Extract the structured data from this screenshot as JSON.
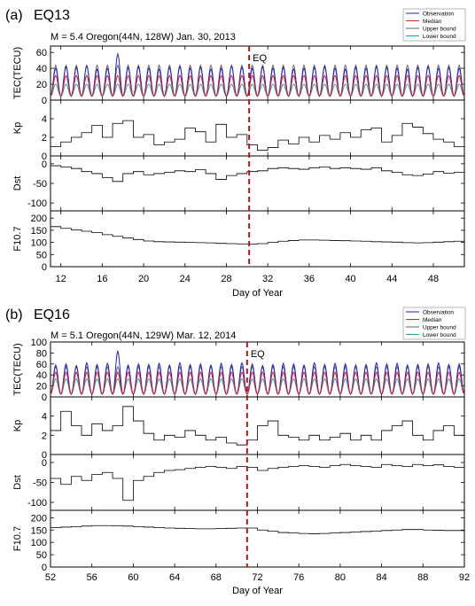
{
  "figure": {
    "colors": {
      "observation": "#1f1fd0",
      "median": "#e0202a",
      "upper": "#606060",
      "lower": "#1aa7a0",
      "eq_line": "#b01818",
      "trace": "#000000"
    }
  },
  "chart_data": [
    {
      "type": "line",
      "panel_tag": "(a)",
      "event_name": "EQ13",
      "subtitle": "M = 5.4 Oregon(44N, 128W) Jan. 30, 2013",
      "eq_label": "EQ",
      "eq_day": 30.2,
      "xlabel": "Day of Year",
      "xlim": [
        11,
        51
      ],
      "xticks": [
        12,
        16,
        20,
        24,
        28,
        32,
        36,
        40,
        44,
        48
      ],
      "legend": [
        "Observation",
        "Median",
        "Upper bound",
        "Lower bound"
      ],
      "tec": {
        "ylabel": "TEC(TECU)",
        "ylim": [
          0,
          68
        ],
        "yticks": [
          0,
          20,
          40,
          60
        ],
        "day_start": 11,
        "days": 40,
        "peak_obs": [
          40,
          42,
          41,
          43,
          39,
          40,
          58,
          41,
          42,
          40,
          39,
          41,
          42,
          40,
          41,
          39,
          40,
          43,
          41,
          40,
          42,
          40,
          41,
          39,
          40,
          41,
          42,
          40,
          39,
          41,
          40,
          42,
          41,
          40,
          39,
          41,
          42,
          40,
          41,
          40
        ],
        "peak_median": 31,
        "peak_upper": 44,
        "peak_lower": 20,
        "night": 5
      },
      "kp": {
        "ylabel": "Kp",
        "ylim": [
          0,
          6
        ],
        "yticks": [
          0,
          2,
          4
        ],
        "x": [
          11,
          12,
          13,
          14,
          15,
          16,
          17,
          18,
          19,
          20,
          21,
          22,
          23,
          24,
          25,
          26,
          27,
          28,
          29,
          30,
          31,
          32,
          33,
          34,
          35,
          36,
          37,
          38,
          39,
          40,
          41,
          42,
          43,
          44,
          45,
          46,
          47,
          48,
          49,
          50,
          51
        ],
        "y": [
          1.0,
          1.5,
          2.0,
          2.5,
          3.3,
          2.0,
          3.5,
          3.8,
          2.0,
          2.3,
          1.2,
          1.5,
          1.8,
          3.0,
          2.6,
          1.5,
          3.4,
          2.0,
          2.3,
          1.2,
          0.6,
          0.9,
          1.7,
          1.3,
          2.0,
          1.5,
          2.2,
          1.8,
          2.5,
          2.0,
          2.8,
          3.0,
          1.5,
          2.2,
          3.5,
          3.1,
          2.4,
          1.8,
          1.5,
          1.0,
          1.5
        ]
      },
      "dst": {
        "ylabel": "Dst",
        "ylim": [
          -120,
          20
        ],
        "yticks": [
          -100,
          -50,
          0
        ],
        "x": [
          11,
          12,
          13,
          14,
          15,
          16,
          17,
          18,
          19,
          20,
          21,
          22,
          23,
          24,
          25,
          26,
          27,
          28,
          29,
          30,
          31,
          32,
          33,
          34,
          35,
          36,
          37,
          38,
          39,
          40,
          41,
          42,
          43,
          44,
          45,
          46,
          47,
          48,
          49,
          50,
          51
        ],
        "y": [
          -5,
          -8,
          -12,
          -20,
          -25,
          -35,
          -45,
          -25,
          -20,
          -28,
          -25,
          -22,
          -18,
          -20,
          -15,
          -25,
          -40,
          -30,
          -25,
          -20,
          -18,
          -12,
          -10,
          -12,
          -14,
          -10,
          -8,
          -12,
          -10,
          -12,
          -14,
          -10,
          -18,
          -22,
          -28,
          -30,
          -26,
          -20,
          -24,
          -22,
          -18
        ]
      },
      "f107": {
        "ylabel": "F10.7",
        "ylim": [
          0,
          230
        ],
        "yticks": [
          0,
          50,
          100,
          150,
          200
        ],
        "x": [
          11,
          12,
          13,
          14,
          15,
          16,
          17,
          18,
          19,
          20,
          21,
          22,
          23,
          24,
          25,
          26,
          27,
          28,
          29,
          30,
          31,
          32,
          33,
          34,
          35,
          36,
          37,
          38,
          39,
          40,
          41,
          42,
          43,
          44,
          45,
          46,
          47,
          48,
          49,
          50,
          51
        ],
        "y": [
          165,
          158,
          152,
          146,
          140,
          132,
          125,
          118,
          112,
          106,
          103,
          102,
          101,
          100,
          99,
          98,
          96,
          95,
          94,
          93,
          95,
          100,
          105,
          108,
          110,
          110,
          109,
          108,
          107,
          106,
          105,
          103,
          102,
          101,
          99,
          98,
          99,
          101,
          103,
          105,
          108
        ]
      }
    },
    {
      "type": "line",
      "panel_tag": "(b)",
      "event_name": "EQ16",
      "subtitle": "M = 5.1 Oregon(44N, 129W) Mar. 12, 2014",
      "eq_label": "EQ",
      "eq_day": 71,
      "xlabel": "Day of Year",
      "xlim": [
        52,
        92
      ],
      "xticks": [
        52,
        56,
        60,
        64,
        68,
        72,
        76,
        80,
        84,
        88,
        92
      ],
      "legend": [
        "Observation",
        "Median",
        "Upper bound",
        "Lower bound"
      ],
      "tec": {
        "ylabel": "TEC(TECU)",
        "ylim": [
          0,
          100
        ],
        "yticks": [
          0,
          20,
          40,
          60,
          80,
          100
        ],
        "day_start": 52,
        "days": 40,
        "peak_obs": [
          58,
          60,
          57,
          62,
          59,
          61,
          83,
          58,
          60,
          59,
          61,
          58,
          62,
          59,
          60,
          58,
          61,
          59,
          62,
          60,
          57,
          59,
          61,
          60,
          58,
          62,
          59,
          61,
          60,
          58,
          59,
          62,
          60,
          61,
          58,
          59,
          60,
          62,
          59,
          60
        ],
        "peak_median": 45,
        "peak_upper": 55,
        "peak_lower": 33,
        "night": 5
      },
      "kp": {
        "ylabel": "Kp",
        "ylim": [
          0,
          6
        ],
        "yticks": [
          0,
          2,
          4
        ],
        "x": [
          52,
          53,
          54,
          55,
          56,
          57,
          58,
          59,
          60,
          61,
          62,
          63,
          64,
          65,
          66,
          67,
          68,
          69,
          70,
          71,
          72,
          73,
          74,
          75,
          76,
          77,
          78,
          79,
          80,
          81,
          82,
          83,
          84,
          85,
          86,
          87,
          88,
          89,
          90,
          91,
          92
        ],
        "y": [
          2.5,
          4.5,
          3.0,
          2.0,
          3.2,
          2.5,
          3.0,
          5.0,
          3.5,
          2.2,
          1.5,
          2.0,
          1.8,
          2.5,
          2.0,
          1.5,
          1.8,
          1.2,
          1.0,
          1.5,
          3.0,
          3.5,
          2.0,
          1.8,
          1.5,
          2.0,
          1.5,
          1.8,
          2.2,
          1.5,
          2.0,
          1.5,
          2.5,
          3.0,
          3.5,
          2.0,
          1.5,
          2.5,
          3.0,
          2.0,
          1.8
        ]
      },
      "dst": {
        "ylabel": "Dst",
        "ylim": [
          -120,
          20
        ],
        "yticks": [
          -100,
          -50,
          0
        ],
        "x": [
          52,
          53,
          54,
          55,
          56,
          57,
          58,
          59,
          60,
          61,
          62,
          63,
          64,
          65,
          66,
          67,
          68,
          69,
          70,
          71,
          72,
          73,
          74,
          75,
          76,
          77,
          78,
          79,
          80,
          81,
          82,
          83,
          84,
          85,
          86,
          87,
          88,
          89,
          90,
          91,
          92
        ],
        "y": [
          -40,
          -55,
          -35,
          -45,
          -30,
          -25,
          -40,
          -95,
          -45,
          -35,
          -25,
          -20,
          -18,
          -15,
          -12,
          -10,
          -12,
          -15,
          -10,
          -12,
          -20,
          -15,
          -12,
          -10,
          -8,
          -10,
          -12,
          -8,
          -5,
          -8,
          -10,
          -12,
          -5,
          -8,
          -10,
          -5,
          -8,
          -6,
          -10,
          -12,
          -8
        ]
      },
      "f107": {
        "ylabel": "F10.7",
        "ylim": [
          0,
          230
        ],
        "yticks": [
          0,
          50,
          100,
          150,
          200
        ],
        "x": [
          52,
          53,
          54,
          55,
          56,
          57,
          58,
          59,
          60,
          61,
          62,
          63,
          64,
          65,
          66,
          67,
          68,
          69,
          70,
          71,
          72,
          73,
          74,
          75,
          76,
          77,
          78,
          79,
          80,
          81,
          82,
          83,
          84,
          85,
          86,
          87,
          88,
          89,
          90,
          91,
          92
        ],
        "y": [
          160,
          162,
          164,
          166,
          168,
          168,
          167,
          166,
          164,
          162,
          160,
          158,
          157,
          156,
          155,
          155,
          156,
          157,
          158,
          158,
          150,
          145,
          140,
          138,
          136,
          135,
          136,
          138,
          140,
          142,
          144,
          146,
          148,
          150,
          152,
          152,
          150,
          149,
          148,
          148,
          148
        ]
      }
    }
  ]
}
